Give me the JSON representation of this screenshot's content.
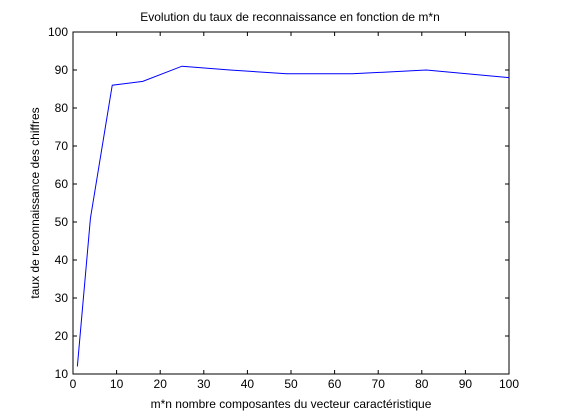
{
  "figure": {
    "background": "#ffffff"
  },
  "chart_data": {
    "type": "line",
    "title": "Evolution du taux de reconnaissance en fonction de m*n",
    "xlabel": "m*n nombre composantes du vecteur caractéristique",
    "ylabel": "taux de reconnaissance des chiffres",
    "xlim": [
      0,
      100
    ],
    "ylim": [
      10,
      100
    ],
    "xticks": [
      0,
      10,
      20,
      30,
      40,
      50,
      60,
      70,
      80,
      90,
      100
    ],
    "yticks": [
      10,
      20,
      30,
      40,
      50,
      60,
      70,
      80,
      90,
      100
    ],
    "grid": false,
    "series": [
      {
        "color": "#0000ff",
        "x": [
          1,
          4,
          9,
          16,
          25,
          36,
          49,
          64,
          81,
          100
        ],
        "y": [
          12,
          51,
          86,
          87,
          91,
          90,
          89,
          89,
          90,
          88
        ]
      }
    ]
  }
}
